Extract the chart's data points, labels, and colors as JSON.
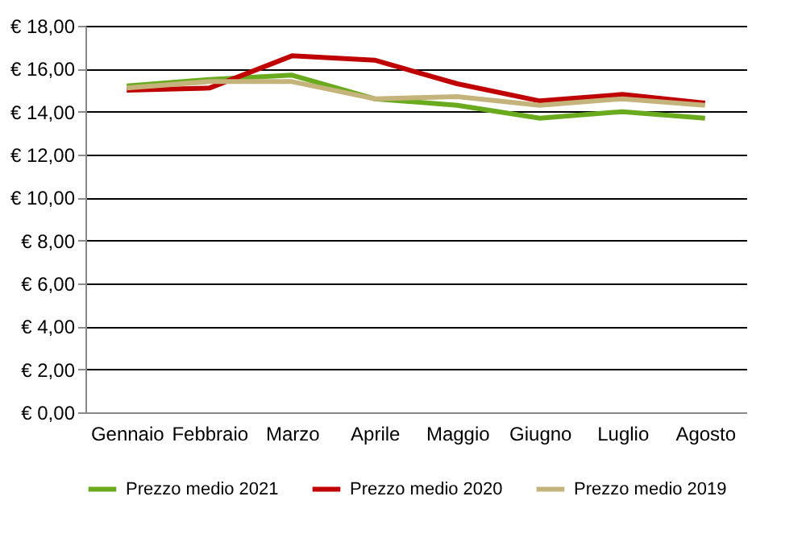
{
  "chart_data": {
    "type": "line",
    "categories": [
      "Gennaio",
      "Febbraio",
      "Marzo",
      "Aprile",
      "Maggio",
      "Giugno",
      "Luglio",
      "Agosto"
    ],
    "series": [
      {
        "name": "Prezzo medio 2021",
        "color": "#6aaa1e",
        "values": [
          15.2,
          15.5,
          15.7,
          14.6,
          14.3,
          13.7,
          14.0,
          13.7
        ]
      },
      {
        "name": "Prezzo medio 2020",
        "color": "#c00000",
        "values": [
          15.0,
          15.1,
          16.6,
          16.4,
          15.3,
          14.5,
          14.8,
          14.4
        ]
      },
      {
        "name": "Prezzo medio 2019",
        "color": "#c4b47c",
        "values": [
          15.1,
          15.4,
          15.4,
          14.6,
          14.7,
          14.3,
          14.6,
          14.3
        ]
      }
    ],
    "ylim": [
      0,
      18
    ],
    "yticks": [
      {
        "value": 0,
        "label": "€ 0,00"
      },
      {
        "value": 2,
        "label": "€ 2,00"
      },
      {
        "value": 4,
        "label": "€ 4,00"
      },
      {
        "value": 6,
        "label": "€ 6,00"
      },
      {
        "value": 8,
        "label": "€ 8,00"
      },
      {
        "value": 10,
        "label": "€ 10,00"
      },
      {
        "value": 12,
        "label": "€ 12,00"
      },
      {
        "value": 14,
        "label": "€ 14,00"
      },
      {
        "value": 16,
        "label": "€ 16,00"
      },
      {
        "value": 18,
        "label": "€ 18,00"
      }
    ],
    "grid": "y",
    "legend": "bottom",
    "marker": "none",
    "line_style": "solid"
  }
}
